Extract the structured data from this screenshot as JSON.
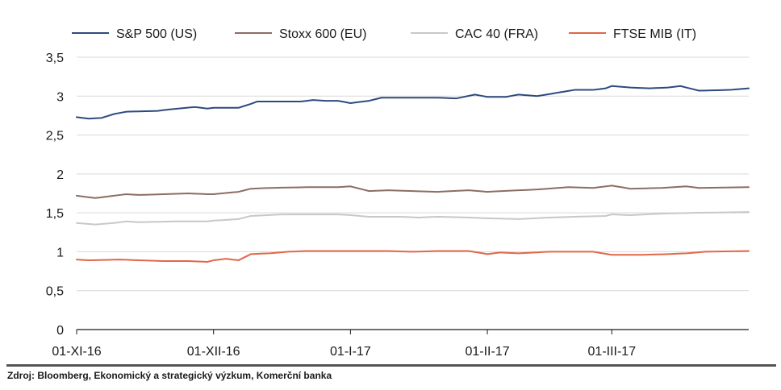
{
  "source": "Zdroj: Bloomberg, Ekonomický a strategický výzkum, Komerční banka",
  "chart_data": {
    "type": "line",
    "title": "",
    "xlabel": "",
    "ylabel": "",
    "ylim": [
      0,
      3.5
    ],
    "yticks": [
      0,
      0.5,
      1,
      1.5,
      2,
      2.5,
      3,
      3.5
    ],
    "ytick_labels": [
      "0",
      "0,5",
      "1",
      "1,5",
      "2",
      "2,5",
      "3",
      "3,5"
    ],
    "grid": "horizontal",
    "legend_position": "top",
    "x_start": "2016-11-01",
    "x_end": "2017-03-31",
    "x_step": "business day",
    "xticks": [
      {
        "date": "2016-11-01",
        "label": "01-XI-16"
      },
      {
        "date": "2016-12-01",
        "label": "01-XII-16"
      },
      {
        "date": "2017-01-02",
        "label": "01-I-17"
      },
      {
        "date": "2017-02-01",
        "label": "01-II-17"
      },
      {
        "date": "2017-03-01",
        "label": "01-III-17"
      }
    ],
    "series": [
      {
        "name": "S&P 500 (US)",
        "color": "#2e4a7d",
        "keypoints": [
          [
            "2016-11-01",
            2.73
          ],
          [
            "2016-11-03",
            2.71
          ],
          [
            "2016-11-07",
            2.72
          ],
          [
            "2016-11-09",
            2.77
          ],
          [
            "2016-11-11",
            2.8
          ],
          [
            "2016-11-18",
            2.81
          ],
          [
            "2016-11-22",
            2.83
          ],
          [
            "2016-11-28",
            2.86
          ],
          [
            "2016-11-30",
            2.84
          ],
          [
            "2016-12-01",
            2.85
          ],
          [
            "2016-12-07",
            2.85
          ],
          [
            "2016-12-09",
            2.9
          ],
          [
            "2016-12-12",
            2.93
          ],
          [
            "2016-12-16",
            2.93
          ],
          [
            "2016-12-21",
            2.93
          ],
          [
            "2016-12-23",
            2.95
          ],
          [
            "2016-12-27",
            2.94
          ],
          [
            "2016-12-29",
            2.94
          ],
          [
            "2017-01-02",
            2.91
          ],
          [
            "2017-01-05",
            2.94
          ],
          [
            "2017-01-09",
            2.98
          ],
          [
            "2017-01-16",
            2.98
          ],
          [
            "2017-01-20",
            2.98
          ],
          [
            "2017-01-25",
            2.97
          ],
          [
            "2017-01-30",
            3.02
          ],
          [
            "2017-02-01",
            2.99
          ],
          [
            "2017-02-06",
            2.99
          ],
          [
            "2017-02-08",
            3.02
          ],
          [
            "2017-02-13",
            3.0
          ],
          [
            "2017-02-16",
            3.04
          ],
          [
            "2017-02-21",
            3.08
          ],
          [
            "2017-02-24",
            3.08
          ],
          [
            "2017-02-28",
            3.1
          ],
          [
            "2017-03-01",
            3.13
          ],
          [
            "2017-03-06",
            3.11
          ],
          [
            "2017-03-09",
            3.1
          ],
          [
            "2017-03-14",
            3.11
          ],
          [
            "2017-03-16",
            3.13
          ],
          [
            "2017-03-21",
            3.07
          ],
          [
            "2017-03-28",
            3.08
          ],
          [
            "2017-03-31",
            3.1
          ]
        ]
      },
      {
        "name": "Stoxx 600 (EU)",
        "color": "#8c6d64",
        "keypoints": [
          [
            "2016-11-01",
            1.72
          ],
          [
            "2016-11-04",
            1.69
          ],
          [
            "2016-11-08",
            1.71
          ],
          [
            "2016-11-11",
            1.74
          ],
          [
            "2016-11-15",
            1.73
          ],
          [
            "2016-11-25",
            1.75
          ],
          [
            "2016-11-30",
            1.74
          ],
          [
            "2016-12-01",
            1.74
          ],
          [
            "2016-12-07",
            1.77
          ],
          [
            "2016-12-09",
            1.81
          ],
          [
            "2016-12-14",
            1.82
          ],
          [
            "2016-12-22",
            1.83
          ],
          [
            "2016-12-29",
            1.83
          ],
          [
            "2017-01-02",
            1.84
          ],
          [
            "2017-01-05",
            1.78
          ],
          [
            "2017-01-10",
            1.79
          ],
          [
            "2017-01-16",
            1.78
          ],
          [
            "2017-01-20",
            1.77
          ],
          [
            "2017-01-27",
            1.79
          ],
          [
            "2017-02-01",
            1.77
          ],
          [
            "2017-02-08",
            1.79
          ],
          [
            "2017-02-13",
            1.8
          ],
          [
            "2017-02-20",
            1.83
          ],
          [
            "2017-02-24",
            1.82
          ],
          [
            "2017-03-01",
            1.85
          ],
          [
            "2017-03-06",
            1.81
          ],
          [
            "2017-03-13",
            1.82
          ],
          [
            "2017-03-17",
            1.84
          ],
          [
            "2017-03-21",
            1.82
          ],
          [
            "2017-03-31",
            1.83
          ]
        ]
      },
      {
        "name": "CAC 40 (FRA)",
        "color": "#c8c8c8",
        "keypoints": [
          [
            "2016-11-01",
            1.37
          ],
          [
            "2016-11-04",
            1.35
          ],
          [
            "2016-11-09",
            1.37
          ],
          [
            "2016-11-11",
            1.39
          ],
          [
            "2016-11-15",
            1.38
          ],
          [
            "2016-11-23",
            1.39
          ],
          [
            "2016-11-30",
            1.39
          ],
          [
            "2016-12-01",
            1.4
          ],
          [
            "2016-12-07",
            1.42
          ],
          [
            "2016-12-09",
            1.46
          ],
          [
            "2016-12-16",
            1.48
          ],
          [
            "2016-12-29",
            1.48
          ],
          [
            "2017-01-02",
            1.47
          ],
          [
            "2017-01-05",
            1.45
          ],
          [
            "2017-01-12",
            1.45
          ],
          [
            "2017-01-17",
            1.44
          ],
          [
            "2017-01-20",
            1.45
          ],
          [
            "2017-01-27",
            1.44
          ],
          [
            "2017-02-01",
            1.43
          ],
          [
            "2017-02-08",
            1.42
          ],
          [
            "2017-02-15",
            1.44
          ],
          [
            "2017-02-21",
            1.45
          ],
          [
            "2017-02-28",
            1.46
          ],
          [
            "2017-03-01",
            1.48
          ],
          [
            "2017-03-06",
            1.47
          ],
          [
            "2017-03-13",
            1.49
          ],
          [
            "2017-03-20",
            1.5
          ],
          [
            "2017-03-31",
            1.51
          ]
        ]
      },
      {
        "name": "FTSE MIB (IT)",
        "color": "#e0674a",
        "keypoints": [
          [
            "2016-11-01",
            0.9
          ],
          [
            "2016-11-03",
            0.89
          ],
          [
            "2016-11-10",
            0.9
          ],
          [
            "2016-11-15",
            0.89
          ],
          [
            "2016-11-21",
            0.88
          ],
          [
            "2016-11-25",
            0.88
          ],
          [
            "2016-11-30",
            0.87
          ],
          [
            "2016-12-01",
            0.89
          ],
          [
            "2016-12-05",
            0.91
          ],
          [
            "2016-12-07",
            0.89
          ],
          [
            "2016-12-09",
            0.97
          ],
          [
            "2016-12-14",
            0.98
          ],
          [
            "2016-12-19",
            1.0
          ],
          [
            "2016-12-22",
            1.01
          ],
          [
            "2016-12-29",
            1.01
          ],
          [
            "2017-01-02",
            1.01
          ],
          [
            "2017-01-10",
            1.01
          ],
          [
            "2017-01-16",
            1.0
          ],
          [
            "2017-01-20",
            1.01
          ],
          [
            "2017-01-27",
            1.01
          ],
          [
            "2017-02-01",
            0.97
          ],
          [
            "2017-02-03",
            0.99
          ],
          [
            "2017-02-08",
            0.98
          ],
          [
            "2017-02-15",
            1.0
          ],
          [
            "2017-02-24",
            1.0
          ],
          [
            "2017-03-01",
            0.96
          ],
          [
            "2017-03-08",
            0.96
          ],
          [
            "2017-03-14",
            0.97
          ],
          [
            "2017-03-17",
            0.98
          ],
          [
            "2017-03-22",
            1.0
          ],
          [
            "2017-03-31",
            1.01
          ]
        ]
      }
    ]
  }
}
